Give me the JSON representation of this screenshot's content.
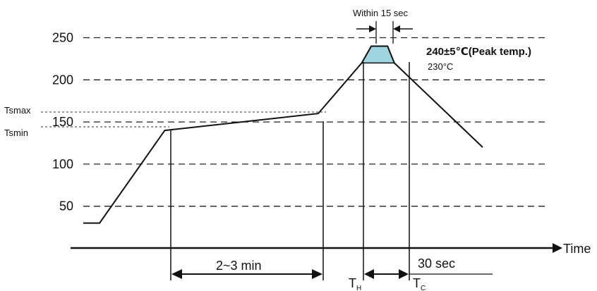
{
  "chart_data": {
    "type": "line",
    "title": "",
    "xlabel": "Time",
    "ylabel": "",
    "ylim": [
      0,
      250
    ],
    "y_ticks": [
      "250",
      "200",
      "150",
      "100",
      "50"
    ],
    "y_tick_values": [
      250,
      200,
      150,
      100,
      50
    ],
    "grid": "dashed horizontal lines at each y tick",
    "series": [
      {
        "values": [
          {
            "x": 0,
            "y": 30
          },
          {
            "x": 12,
            "y": 30
          },
          {
            "x": 60,
            "y": 140
          },
          {
            "x": 173,
            "y": 160
          },
          {
            "x": 205,
            "y": 220
          },
          {
            "x": 212,
            "y": 240
          },
          {
            "x": 224,
            "y": 240
          },
          {
            "x": 229,
            "y": 220
          },
          {
            "x": 294,
            "y": 120
          }
        ]
      }
    ],
    "labels": {
      "tsmax": "Tsmax",
      "tsmin": "Tsmin",
      "peak": "240±5℃(Peak temp.)",
      "t230": "230°C",
      "within": "Within 15 sec",
      "preheat": "2~3 min",
      "sec30": "30 sec",
      "th_main": "T",
      "th_sub": "H",
      "tc_main": "T",
      "tc_sub": "C"
    },
    "colors": {
      "line": "#111111",
      "grid": "#222222",
      "peak_fill": "#9fd3dd"
    }
  }
}
